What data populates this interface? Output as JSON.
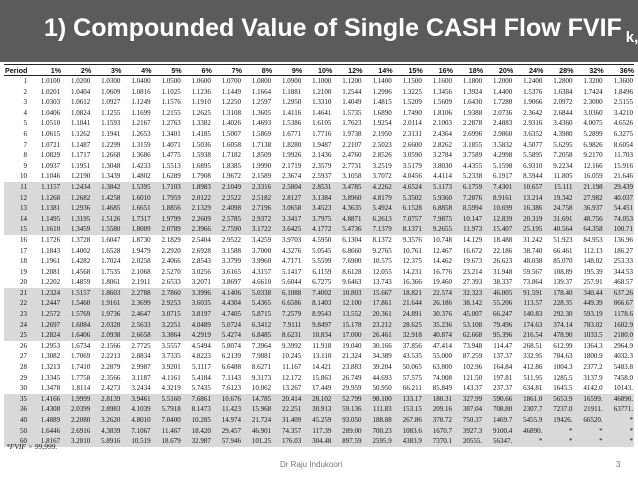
{
  "slide": {
    "title_main": "1) Compounded Value of Single CASH Flow FVIF",
    "title_sub": "k,n",
    "footnote": "*FVIF > 99,999.",
    "author": "Dr Raju Indukoori",
    "page_number": "3"
  },
  "table": {
    "headers": [
      "Period",
      "1%",
      "2%",
      "3%",
      "4%",
      "5%",
      "6%",
      "7%",
      "8%",
      "9%",
      "10%",
      "12%",
      "14%",
      "15%",
      "16%",
      "18%",
      "20%",
      "24%",
      "28%",
      "32%",
      "36%"
    ],
    "shaded_rows": [
      10,
      11,
      12,
      13,
      14,
      20,
      21,
      22,
      23,
      24,
      30,
      31,
      32,
      33,
      34,
      38,
      39,
      40
    ],
    "rows": [
      [
        "1",
        "1.0100",
        "1.0200",
        "1.0300",
        "1.0400",
        "1.0500",
        "1.0600",
        "1.0700",
        "1.0800",
        "1.0900",
        "1.1000",
        "1.1200",
        "1.1400",
        "1.1500",
        "1.1600",
        "1.1800",
        "1.2000",
        "1.2400",
        "1.2800",
        "1.3200",
        "1.3600"
      ],
      [
        "2",
        "1.0201",
        "1.0404",
        "1.0609",
        "1.0816",
        "1.1025",
        "1.1236",
        "1.1449",
        "1.1664",
        "1.1881",
        "1.2100",
        "1.2544",
        "1.2996",
        "1.3225",
        "1.3456",
        "1.3924",
        "1.4400",
        "1.5376",
        "1.6384",
        "1.7424",
        "1.8496"
      ],
      [
        "3",
        "1.0303",
        "1.0612",
        "1.0927",
        "1.1249",
        "1.1576",
        "1.1910",
        "1.2250",
        "1.2597",
        "1.2950",
        "1.3310",
        "1.4049",
        "1.4815",
        "1.5209",
        "1.5609",
        "1.6430",
        "1.7280",
        "1.9066",
        "2.0972",
        "2.3000",
        "2.5155"
      ],
      [
        "4",
        "1.0406",
        "1.0824",
        "1.1255",
        "1.1699",
        "1.2155",
        "1.2625",
        "1.3108",
        "1.3605",
        "1.4116",
        "1.4641",
        "1.5735",
        "1.6890",
        "1.7490",
        "1.8106",
        "1.9388",
        "2.0736",
        "2.3642",
        "2.6844",
        "3.0360",
        "3.4210"
      ],
      [
        "5",
        "1.0510",
        "1.1041",
        "1.1593",
        "1.2167",
        "1.2763",
        "1.3382",
        "1.4026",
        "1.4693",
        "1.5386",
        "1.6105",
        "1.7623",
        "1.9254",
        "2.0114",
        "2.1003",
        "2.2878",
        "2.4883",
        "2.9316",
        "3.4360",
        "4.0075",
        "4.6526"
      ],
      [
        "6",
        "1.0615",
        "1.1262",
        "1.1941",
        "1.2653",
        "1.3401",
        "1.4185",
        "1.5007",
        "1.5869",
        "1.6771",
        "1.7716",
        "1.9738",
        "2.1950",
        "2.3131",
        "2.4364",
        "2.6996",
        "2.9860",
        "3.6352",
        "4.3980",
        "5.2899",
        "6.3275"
      ],
      [
        "7",
        "1.0721",
        "1.1487",
        "1.2299",
        "1.3159",
        "1.4071",
        "1.5036",
        "1.6058",
        "1.7138",
        "1.8280",
        "1.9487",
        "2.2107",
        "2.5023",
        "2.6600",
        "2.8262",
        "3.1855",
        "3.5832",
        "4.5077",
        "5.6295",
        "6.9826",
        "8.6054"
      ],
      [
        "8",
        "1.0829",
        "1.1717",
        "1.2668",
        "1.3686",
        "1.4775",
        "1.5938",
        "1.7182",
        "1.8509",
        "1.9926",
        "2.1436",
        "2.4760",
        "2.8526",
        "3.0590",
        "3.2784",
        "3.7589",
        "4.2998",
        "5.5895",
        "7.2058",
        "9.2170",
        "11.703"
      ],
      [
        "9",
        "1.0937",
        "1.1951",
        "1.3048",
        "1.4233",
        "1.5513",
        "1.6895",
        "1.8385",
        "1.9990",
        "2.1719",
        "2.3579",
        "2.7731",
        "3.2519",
        "3.5179",
        "3.8030",
        "4.4355",
        "5.1598",
        "6.9310",
        "9.2234",
        "12.166",
        "15.916"
      ],
      [
        "10",
        "1.1046",
        "1.2190",
        "1.3439",
        "1.4802",
        "1.6289",
        "1.7908",
        "1.9672",
        "2.1589",
        "2.3674",
        "2.5937",
        "3.1058",
        "3.7072",
        "4.0456",
        "4.4114",
        "5.2338",
        "6.1917",
        "8.5944",
        "11.805",
        "16.059",
        "21.646"
      ],
      [
        "11",
        "1.1157",
        "1.2434",
        "1.3842",
        "1.5395",
        "1.7103",
        "1.8983",
        "2.1049",
        "2.3316",
        "2.5804",
        "2.8531",
        "3.4785",
        "4.2262",
        "4.6524",
        "5.1173",
        "6.1759",
        "7.4301",
        "10.657",
        "15.111",
        "21.198",
        "29.439"
      ],
      [
        "12",
        "1.1268",
        "1.2682",
        "1.4258",
        "1.6010",
        "1.7959",
        "2.0122",
        "2.2522",
        "2.5182",
        "2.8127",
        "3.1384",
        "3.8960",
        "4.8179",
        "5.3502",
        "5.9360",
        "7.2876",
        "8.9161",
        "13.214",
        "19.342",
        "27.982",
        "40.037"
      ],
      [
        "13",
        "1.1381",
        "1.2936",
        "1.4685",
        "1.6651",
        "1.8856",
        "2.1329",
        "2.4098",
        "2.7196",
        "3.0658",
        "3.4523",
        "4.3635",
        "5.4924",
        "6.1528",
        "6.8858",
        "8.5994",
        "10.699",
        "16.386",
        "24.758",
        "36.937",
        "54.451"
      ],
      [
        "14",
        "1.1495",
        "1.3195",
        "1.5126",
        "1.7317",
        "1.9799",
        "2.2609",
        "2.5785",
        "2.9372",
        "3.3417",
        "3.7975",
        "4.8871",
        "6.2613",
        "7.0757",
        "7.9875",
        "10.147",
        "12.839",
        "20.319",
        "31.691",
        "48.756",
        "74.053"
      ],
      [
        "15",
        "1.1610",
        "1.3459",
        "1.5580",
        "1.8009",
        "2.0789",
        "2.3966",
        "2.7590",
        "3.1722",
        "3.6425",
        "4.1772",
        "5.4736",
        "7.1379",
        "8.1371",
        "9.2655",
        "11.973",
        "15.407",
        "25.195",
        "40.564",
        "64.358",
        "100.71"
      ],
      [
        "16",
        "1.1726",
        "1.3728",
        "1.6047",
        "1.8730",
        "2.1829",
        "2.5404",
        "2.9522",
        "3.4259",
        "3.9703",
        "4.5950",
        "6.1304",
        "8.1372",
        "9.3576",
        "10.748",
        "14.129",
        "18.488",
        "31.242",
        "51.923",
        "84.953",
        "136.96"
      ],
      [
        "17",
        "1.1843",
        "1.4002",
        "1.6528",
        "1.9479",
        "2.2920",
        "2.6928",
        "3.1588",
        "3.7000",
        "4.3276",
        "5.0545",
        "6.8660",
        "9.2765",
        "10.761",
        "12.467",
        "16.672",
        "22.186",
        "38.740",
        "66.461",
        "112.13",
        "186.27"
      ],
      [
        "18",
        "1.1961",
        "1.4282",
        "1.7024",
        "2.0258",
        "2.4066",
        "2.8543",
        "3.3799",
        "3.9960",
        "4.7171",
        "5.5599",
        "7.6900",
        "10.575",
        "12.375",
        "14.462",
        "19.673",
        "26.623",
        "48.038",
        "85.070",
        "148.02",
        "253.33"
      ],
      [
        "19",
        "1.2081",
        "1.4568",
        "1.7535",
        "2.1068",
        "2.5270",
        "3.0256",
        "3.6165",
        "4.3157",
        "5.1417",
        "6.1159",
        "8.6128",
        "12.055",
        "14.231",
        "16.776",
        "23.214",
        "31.948",
        "59.567",
        "108.89",
        "195.39",
        "344.53"
      ],
      [
        "20",
        "1.2202",
        "1.4859",
        "1.8061",
        "2.1911",
        "2.6533",
        "3.2071",
        "3.8697",
        "4.6610",
        "5.6044",
        "6.7275",
        "9.6463",
        "13.743",
        "16.366",
        "19.460",
        "27.393",
        "38.337",
        "73.864",
        "139.37",
        "257.91",
        "468.57"
      ],
      [
        "21",
        "1.2324",
        "1.5157",
        "1.8603",
        "2.2788",
        "2.7860",
        "3.3996",
        "4.1406",
        "5.0338",
        "6.1088",
        "7.4002",
        "10.803",
        "15.667",
        "18.821",
        "22.574",
        "32.323",
        "46.005",
        "91.591",
        "178.40",
        "340.44",
        "637.26"
      ],
      [
        "22",
        "1.2447",
        "1.5460",
        "1.9161",
        "2.3699",
        "2.9253",
        "3.6035",
        "4.4304",
        "5.4365",
        "6.6586",
        "8.1403",
        "12.100",
        "17.861",
        "21.644",
        "26.186",
        "38.142",
        "55.206",
        "113.57",
        "228.35",
        "449.39",
        "866.67"
      ],
      [
        "23",
        "1.2572",
        "1.5769",
        "1.9736",
        "2.4647",
        "3.0715",
        "3.8197",
        "4.7405",
        "5.8715",
        "7.2579",
        "8.9543",
        "13.552",
        "20.361",
        "24.891",
        "30.376",
        "45.007",
        "66.247",
        "140.83",
        "292.30",
        "593.19",
        "1178.6"
      ],
      [
        "24",
        "1.2697",
        "1.6084",
        "2.0328",
        "2.5633",
        "3.2251",
        "4.0489",
        "5.0724",
        "6.3412",
        "7.9111",
        "9.8497",
        "15.178",
        "23.212",
        "28.625",
        "35.236",
        "53.108",
        "79.496",
        "174.63",
        "374.14",
        "783.02",
        "1602.9"
      ],
      [
        "25",
        "1.2824",
        "1.6406",
        "2.0938",
        "2.6658",
        "3.3864",
        "4.2919",
        "5.4274",
        "6.8485",
        "8.6231",
        "10.834",
        "17.000",
        "26.461",
        "32.918",
        "40.874",
        "62.668",
        "95.396",
        "216.54",
        "478.90",
        "1033.5",
        "2180.0"
      ],
      [
        "26",
        "1.2953",
        "1.6734",
        "2.1566",
        "2.7725",
        "3.5557",
        "4.5494",
        "5.8074",
        "7.3964",
        "9.3992",
        "11.918",
        "19.040",
        "30.166",
        "37.856",
        "47.414",
        "73.948",
        "114.47",
        "268.51",
        "612.99",
        "1364.3",
        "2964.9"
      ],
      [
        "27",
        "1.3082",
        "1.7069",
        "2.2213",
        "2.8834",
        "3.7335",
        "4.8223",
        "6.2139",
        "7.9881",
        "10.245",
        "13.110",
        "21.324",
        "34.389",
        "43.535",
        "55.000",
        "87.259",
        "137.37",
        "332.95",
        "784.63",
        "1800.9",
        "4032.3"
      ],
      [
        "28",
        "1.3213",
        "1.7410",
        "2.2879",
        "2.9987",
        "3.9201",
        "5.1117",
        "6.6488",
        "8.6271",
        "11.167",
        "14.421",
        "23.883",
        "39.204",
        "50.065",
        "63.800",
        "102.96",
        "164.84",
        "412.86",
        "1004.3",
        "2377.2",
        "5483.8"
      ],
      [
        "29",
        "1.3345",
        "1.7758",
        "2.3566",
        "3.1187",
        "4.1161",
        "5.4184",
        "7.1143",
        "9.3173",
        "12.172",
        "15.863",
        "26.749",
        "44.693",
        "57.575",
        "74.008",
        "121.50",
        "197.81",
        "511.95",
        "1285.5",
        "3137.9",
        "7458.0"
      ],
      [
        "30",
        "1.3478",
        "1.8114",
        "2.4273",
        "3.2434",
        "4.3219",
        "5.7435",
        "7.6123",
        "10.062",
        "13.267",
        "17.449",
        "29.959",
        "50.950",
        "66.211",
        "85.849",
        "143.37",
        "237.37",
        "634.81",
        "1645.5",
        "4142.0",
        "10143."
      ],
      [
        "35",
        "1.4166",
        "1.9999",
        "2.8139",
        "3.9461",
        "5.5160",
        "7.6861",
        "10.676",
        "14.785",
        "20.414",
        "28.102",
        "52.799",
        "98.100",
        "133.17",
        "180.31",
        "327.99",
        "590.66",
        "1861.0",
        "5653.9",
        "16599.",
        "46890."
      ],
      [
        "36",
        "1.4308",
        "2.0399",
        "2.8983",
        "4.1039",
        "5.7918",
        "8.1473",
        "11.423",
        "15.968",
        "22.251",
        "30.913",
        "59.136",
        "111.83",
        "153.15",
        "209.16",
        "387.04",
        "708.80",
        "2307.7",
        "7237.0",
        "21911.",
        "63771."
      ],
      [
        "40",
        "1.4889",
        "2.2080",
        "3.2620",
        "4.8010",
        "7.0400",
        "10.285",
        "14.974",
        "21.724",
        "31.409",
        "45.259",
        "93.050",
        "188.88",
        "267.86",
        "378.72",
        "750.37",
        "1469.7",
        "5455.9",
        "19426.",
        "66520.",
        "*"
      ],
      [
        "50",
        "1.6446",
        "2.6916",
        "4.3839",
        "7.1067",
        "11.467",
        "18.420",
        "29.457",
        "46.901",
        "74.357",
        "117.39",
        "289.00",
        "700.23",
        "1083.6",
        "1670.7",
        "3927.3",
        "9100.4",
        "46890.",
        "*",
        "*",
        "*"
      ],
      [
        "60",
        "1.8167",
        "3.2810",
        "5.8916",
        "10.519",
        "18.679",
        "32.987",
        "57.946",
        "101.25",
        "176.03",
        "304.48",
        "897.59",
        "2595.9",
        "4383.9",
        "7370.1",
        "20555.",
        "56347.",
        "*",
        "*",
        "*",
        "*"
      ]
    ]
  }
}
